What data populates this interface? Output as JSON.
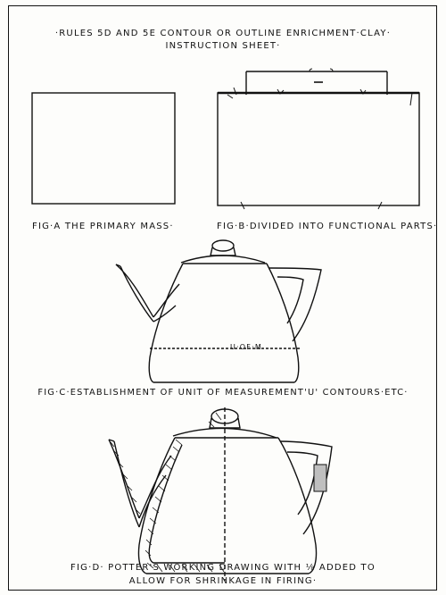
{
  "sheet": {
    "title_line1": "·RULES 5D AND 5E  CONTOUR OR OUTLINE ENRICHMENT·CLAY·",
    "title_line2": "INSTRUCTION SHEET·"
  },
  "figures": {
    "fig_a_caption": "FIG·A  THE PRIMARY MASS·",
    "fig_b_caption": "FIG·B·DIVIDED INTO FUNCTIONAL PARTS·",
    "fig_c_caption": "FIG·C·ESTABLISHMENT OF UNIT OF MEASUREMENT'U' CONTOURS·ETC·",
    "fig_c_label": "U·OF·M",
    "fig_d_caption_line1": "FIG·D· POTTER'S WORKING DRAWING WITH ⅛ ADDED TO",
    "fig_d_caption_line2": "ALLOW FOR SHRINKAGE IN FIRING·"
  }
}
